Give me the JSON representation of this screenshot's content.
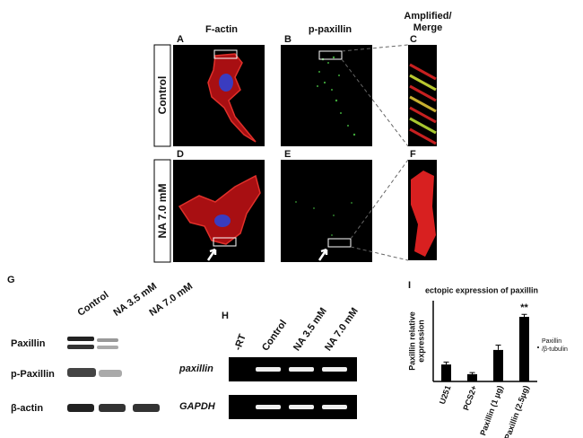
{
  "figure": {
    "column_headers": [
      "F-actin",
      "p-paxillin"
    ],
    "amplified_header": [
      "Amplified/",
      "Merge"
    ],
    "panel_letters": [
      "A",
      "B",
      "C",
      "D",
      "E",
      "F",
      "G",
      "H",
      "I"
    ],
    "row_labels": [
      "Control",
      "NA 7.0 mM"
    ]
  },
  "blot_g": {
    "lanes": [
      "Control",
      "NA 3.5 mM",
      "NA 7.0 mM"
    ],
    "rows": [
      "Paxillin",
      "p-Paxillin",
      "β-actin"
    ]
  },
  "gel_h": {
    "lanes": [
      "-RT",
      "Control",
      "NA 3.5 mM",
      "NA 7.0 mM"
    ],
    "rows": [
      "paxillin",
      "GAPDH"
    ]
  },
  "chart_data": {
    "type": "bar",
    "title": "ectopic expression of paxillin",
    "y_label": [
      "Paxillin relative",
      "expression"
    ],
    "categories": [
      "U251",
      "PCS2+",
      "Paxillin (1 μg)",
      "Paxillin (2.5μg)"
    ],
    "values": [
      2.1,
      0.9,
      3.9,
      8.0
    ],
    "errors": [
      0.3,
      0.2,
      0.6,
      0.3
    ],
    "color": "#000000",
    "ylim": [
      0,
      10
    ],
    "legend": [
      "Paxillin",
      "/β-tubulin"
    ],
    "annotation": "**"
  }
}
